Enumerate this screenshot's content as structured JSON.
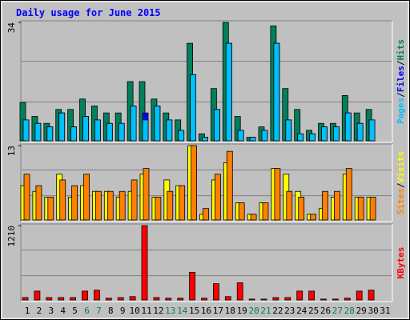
{
  "chart_data": {
    "type": "bar",
    "title": "Daily usage for June 2015",
    "categories": [
      "1",
      "2",
      "3",
      "4",
      "5",
      "6",
      "7",
      "8",
      "9",
      "10",
      "11",
      "12",
      "13",
      "14",
      "15",
      "16",
      "17",
      "18",
      "19",
      "20",
      "21",
      "22",
      "23",
      "24",
      "25",
      "26",
      "27",
      "28",
      "29",
      "30",
      "31"
    ],
    "highlighted_categories": [
      5,
      6,
      12,
      13,
      19,
      20,
      26,
      27
    ],
    "category_color": "#000000",
    "highlight_color": "#00805c",
    "legend_separator": "/",
    "panels": [
      {
        "ylim": [
          0,
          34
        ],
        "yticks": [
          34
        ],
        "series": [
          {
            "name": "Hits",
            "color": "#00805c",
            "values": [
              11,
              7,
              5,
              9,
              9,
              12,
              10,
              8,
              8,
              17,
              17,
              12,
              8,
              6,
              28,
              2,
              15,
              34,
              7,
              1,
              4,
              33,
              15,
              9,
              3,
              5,
              5,
              13,
              8,
              9,
              0
            ]
          },
          {
            "name": "Files",
            "color": "#0000ff",
            "values": [
              6,
              5,
              4,
              8,
              4,
              7,
              6,
              5,
              5,
              10,
              8,
              10,
              6,
              3,
              19,
              1,
              9,
              28,
              3,
              1,
              3,
              28,
              6,
              2,
              2,
              4,
              4,
              8,
              5,
              6,
              0
            ]
          },
          {
            "name": "Pages",
            "color": "#00c0ff",
            "values": [
              6,
              5,
              4,
              8,
              4,
              7,
              6,
              5,
              5,
              10,
              6,
              10,
              6,
              3,
              19,
              1,
              9,
              28,
              3,
              1,
              3,
              28,
              6,
              2,
              2,
              4,
              4,
              8,
              5,
              6,
              0
            ]
          }
        ]
      },
      {
        "ylim": [
          0,
          13
        ],
        "yticks": [
          13
        ],
        "series": [
          {
            "name": "Visits",
            "color": "#ffff00",
            "values": [
              6,
              5,
              4,
              8,
              4,
              6,
              5,
              5,
              4,
              5,
              8,
              4,
              7,
              6,
              13,
              1,
              7,
              10,
              3,
              1,
              3,
              9,
              8,
              5,
              1,
              2,
              4,
              8,
              4,
              4,
              0
            ]
          },
          {
            "name": "Sites",
            "color": "#ff8000",
            "values": [
              8,
              6,
              4,
              7,
              6,
              8,
              5,
              5,
              5,
              7,
              9,
              4,
              5,
              6,
              13,
              2,
              8,
              12,
              3,
              1,
              3,
              9,
              5,
              4,
              1,
              5,
              5,
              9,
              4,
              4,
              0
            ]
          }
        ]
      },
      {
        "ylim": [
          0,
          1210
        ],
        "yticks": [
          1210
        ],
        "series": [
          {
            "name": "KBytes",
            "color": "#ff0000",
            "values": [
              40,
              145,
              40,
              40,
              40,
              145,
              160,
              30,
              40,
              55,
              1210,
              40,
              30,
              30,
              450,
              30,
              265,
              55,
              280,
              15,
              15,
              40,
              40,
              145,
              145,
              15,
              15,
              30,
              145,
              160,
              0
            ]
          }
        ]
      }
    ]
  }
}
